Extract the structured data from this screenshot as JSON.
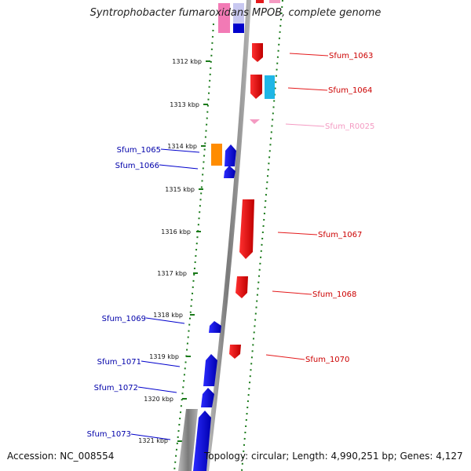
{
  "title": "Syntrophobacter fumaroxidans MPOB, complete genome",
  "footer": {
    "accession": "Accession: NC_008554",
    "topology": "Topology: circular; Length: 4,990,251 bp; Genes: 4,127"
  },
  "ticks": [
    "1312 kbp",
    "1313 kbp",
    "1314 kbp",
    "1315 kbp",
    "1316 kbp",
    "1317 kbp",
    "1318 kbp",
    "1319 kbp",
    "1320 kbp",
    "1321 kbp"
  ],
  "genes": [
    {
      "id": "Sfum_1063",
      "strand": "reverse",
      "color": "#e41a1c"
    },
    {
      "id": "Sfum_1064",
      "strand": "reverse",
      "color": "#e41a1c"
    },
    {
      "id": "Sfum_R0025",
      "strand": "reverse",
      "color": "#f49ac2"
    },
    {
      "id": "Sfum_1065",
      "strand": "forward",
      "color": "#0000cc"
    },
    {
      "id": "Sfum_1066",
      "strand": "forward",
      "color": "#0000cc"
    },
    {
      "id": "Sfum_1067",
      "strand": "reverse",
      "color": "#e41a1c"
    },
    {
      "id": "Sfum_1068",
      "strand": "reverse",
      "color": "#e41a1c"
    },
    {
      "id": "Sfum_1069",
      "strand": "forward",
      "color": "#0000cc"
    },
    {
      "id": "Sfum_1070",
      "strand": "reverse",
      "color": "#e41a1c"
    },
    {
      "id": "Sfum_1071",
      "strand": "forward",
      "color": "#0000cc"
    },
    {
      "id": "Sfum_1072",
      "strand": "forward",
      "color": "#0000cc"
    },
    {
      "id": "Sfum_1073",
      "strand": "forward",
      "color": "#0000cc"
    }
  ],
  "colors": {
    "tick": "#1a7a1a",
    "forward": "#0000cc",
    "reverse": "#e41a1c",
    "backbone": "#8c8c8c",
    "rna": "#f49ac2"
  }
}
